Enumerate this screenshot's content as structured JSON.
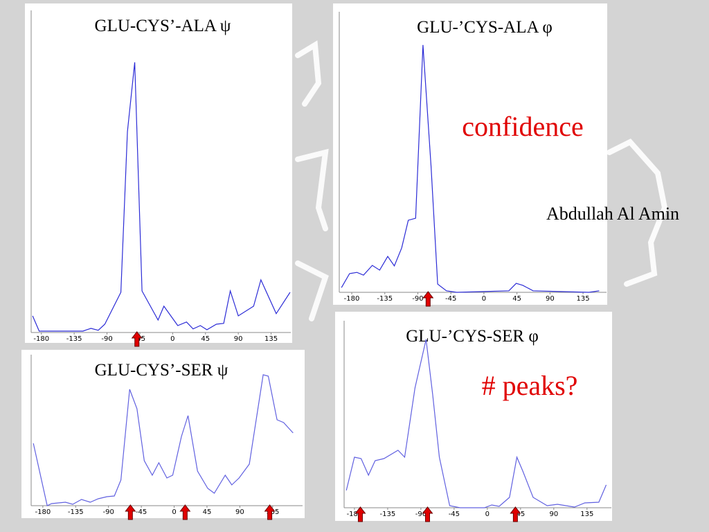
{
  "chart_data": [
    {
      "type": "line",
      "title": "GLU-CYS’-ALA ψ",
      "color": "#2b2bd6",
      "x": [
        -192,
        -183,
        -123,
        -112,
        -102,
        -93,
        -71,
        -62,
        -52,
        -42,
        -20,
        -12,
        7,
        19,
        28,
        38,
        47,
        60,
        70,
        79,
        90,
        111,
        121,
        142,
        161
      ],
      "values": [
        6,
        0.5,
        0.5,
        1.5,
        0.8,
        3,
        14.5,
        72.5,
        97.5,
        15,
        4.5,
        9.5,
        2.5,
        3.8,
        1.3,
        2.5,
        1,
        3,
        3.3,
        15,
        6,
        9.5,
        19,
        6.8,
        14.5
      ],
      "xlim": [
        -194,
        162
      ],
      "ylim": [
        0,
        100
      ],
      "xticks": [
        -180,
        -135,
        -90,
        -45,
        0,
        45,
        90,
        135
      ],
      "arrows": [
        -49
      ]
    },
    {
      "type": "line",
      "title": "GLU-’CYS-ALA φ",
      "color": "#2b2bd6",
      "x": [
        -194,
        -183,
        -173,
        -164,
        -152,
        -142,
        -131,
        -122,
        -112,
        -103,
        -93,
        -83,
        -72,
        -63,
        -51,
        -37,
        34,
        44,
        53,
        67,
        143,
        157
      ],
      "values": [
        1.9,
        7.5,
        8,
        6.9,
        10.8,
        8.9,
        14.4,
        10.6,
        17.8,
        28.9,
        29.7,
        99.2,
        50.6,
        3.3,
        0.6,
        0,
        0.6,
        3.6,
        2.8,
        0.6,
        0,
        0.6
      ],
      "xlim": [
        -197,
        167
      ],
      "ylim": [
        0,
        100
      ],
      "xticks": [
        -180,
        -135,
        -90,
        -45,
        0,
        45,
        90,
        135
      ],
      "arrows": [
        -76
      ]
    },
    {
      "type": "line",
      "title": "GLU-CYS’-SER ψ",
      "color": "#6060e0",
      "x": [
        -193,
        -174,
        -168,
        -149,
        -139,
        -127,
        -115,
        -104,
        -92,
        -82,
        -73,
        -61,
        -51,
        -41,
        -30,
        -21,
        -10,
        -2,
        10,
        19,
        32,
        46,
        55,
        70,
        79,
        89,
        103,
        122,
        129,
        141,
        150,
        163
      ],
      "values": [
        45,
        0,
        1.5,
        2.5,
        1,
        4.5,
        2.5,
        5,
        6.5,
        7,
        18.5,
        84,
        70,
        32.5,
        22,
        31,
        20,
        22,
        50,
        65,
        25,
        12.5,
        9,
        22,
        15,
        20,
        30,
        94.5,
        93.5,
        62,
        60,
        52.5
      ],
      "xlim": [
        -196,
        176
      ],
      "ylim": [
        0,
        100
      ],
      "xticks": [
        -180,
        -135,
        -90,
        -45,
        0,
        45,
        90,
        135
      ],
      "arrows": [
        -60,
        15,
        131
      ]
    },
    {
      "type": "line",
      "title": "GLU-’CYS-SER φ",
      "color": "#6060e0",
      "x": [
        -191,
        -180,
        -171,
        -161,
        -152,
        -140,
        -121,
        -112,
        -98,
        -83,
        -74,
        -65,
        -51,
        -37,
        -4,
        6,
        16,
        30,
        40,
        48,
        62,
        81,
        95,
        118,
        132,
        151,
        161
      ],
      "values": [
        10,
        29.2,
        28.4,
        18.8,
        27.2,
        28.4,
        33.2,
        29.2,
        69.2,
        97.2,
        65.2,
        29.2,
        1.2,
        0,
        0,
        1.6,
        0.8,
        6,
        29.2,
        21.2,
        6,
        1.2,
        2,
        0.4,
        2.8,
        3.2,
        13.2
      ],
      "xlim": [
        -194,
        168
      ],
      "ylim": [
        0,
        100
      ],
      "xticks": [
        -180,
        -135,
        -90,
        -45,
        0,
        45,
        90,
        135
      ],
      "arrows": [
        -172,
        -81,
        38
      ]
    }
  ],
  "annotations": [
    "confidence",
    "Abdullah Al Amin",
    "# peaks?"
  ]
}
